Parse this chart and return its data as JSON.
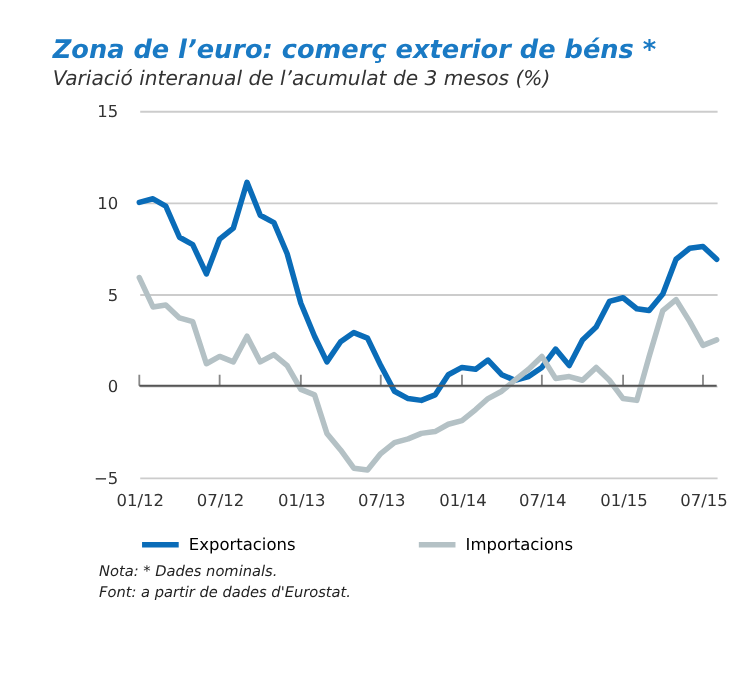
{
  "chart_data": {
    "type": "line",
    "title": "Zona de l’euro: comerç exterior de béns *",
    "subtitle": "Variació interanual de l’acumulat de 3 mesos (%)",
    "x": [
      "2012-01",
      "2012-02",
      "2012-03",
      "2012-04",
      "2012-05",
      "2012-06",
      "2012-07",
      "2012-08",
      "2012-09",
      "2012-10",
      "2012-11",
      "2012-12",
      "2013-01",
      "2013-02",
      "2013-03",
      "2013-04",
      "2013-05",
      "2013-06",
      "2013-07",
      "2013-08",
      "2013-09",
      "2013-10",
      "2013-11",
      "2013-12",
      "2014-01",
      "2014-02",
      "2014-03",
      "2014-04",
      "2014-05",
      "2014-06",
      "2014-07",
      "2014-08",
      "2014-09",
      "2014-10",
      "2014-11",
      "2014-12",
      "2015-01",
      "2015-02",
      "2015-03",
      "2015-04",
      "2015-05",
      "2015-06",
      "2015-07",
      "2015-08"
    ],
    "series": [
      {
        "name": "Exportacions",
        "color": "#0a6cb8",
        "values": [
          10.0,
          10.2,
          9.8,
          8.1,
          7.7,
          6.1,
          8.0,
          8.6,
          11.1,
          9.3,
          8.9,
          7.2,
          4.5,
          2.7,
          1.3,
          2.4,
          2.9,
          2.6,
          1.1,
          -0.3,
          -0.7,
          -0.8,
          -0.5,
          0.6,
          1.0,
          0.9,
          1.4,
          0.6,
          0.3,
          0.5,
          1.0,
          2.0,
          1.1,
          2.5,
          3.2,
          4.6,
          4.8,
          4.2,
          4.1,
          5.0,
          6.9,
          7.5,
          7.6,
          6.9
        ]
      },
      {
        "name": "Importacions",
        "color": "#b4c1c5",
        "values": [
          5.9,
          4.3,
          4.4,
          3.7,
          3.5,
          1.2,
          1.6,
          1.3,
          2.7,
          1.3,
          1.7,
          1.1,
          -0.2,
          -0.5,
          -2.6,
          -3.5,
          -4.5,
          -4.6,
          -3.7,
          -3.1,
          -2.9,
          -2.6,
          -2.5,
          -2.1,
          -1.9,
          -1.3,
          -0.7,
          -0.3,
          0.3,
          0.9,
          1.6,
          0.4,
          0.5,
          0.3,
          1.0,
          0.3,
          -0.7,
          -0.8,
          1.6,
          4.1,
          4.7,
          3.5,
          2.2,
          2.5
        ]
      }
    ],
    "xlim": [
      "2012-01",
      "2015-08"
    ],
    "xticks": [
      {
        "value": "2012-01",
        "label": "01/12"
      },
      {
        "value": "2012-07",
        "label": "07/12"
      },
      {
        "value": "2013-01",
        "label": "01/13"
      },
      {
        "value": "2013-07",
        "label": "07/13"
      },
      {
        "value": "2014-01",
        "label": "01/14"
      },
      {
        "value": "2014-07",
        "label": "07/14"
      },
      {
        "value": "2015-01",
        "label": "01/15"
      },
      {
        "value": "2015-07",
        "label": "07/15"
      }
    ],
    "ylim": [
      -5,
      15
    ],
    "yticks": [
      -5,
      0,
      5,
      10,
      15
    ],
    "ref_lines": [
      {
        "axis": "y",
        "value": 0,
        "color": "#555555"
      }
    ],
    "grid": "y",
    "legend": "bottom",
    "line_style": "solid",
    "marker": "none",
    "annotations": [
      "Nota: * Dades nominals.",
      "Font: a partir de dades d'Eurostat."
    ]
  }
}
